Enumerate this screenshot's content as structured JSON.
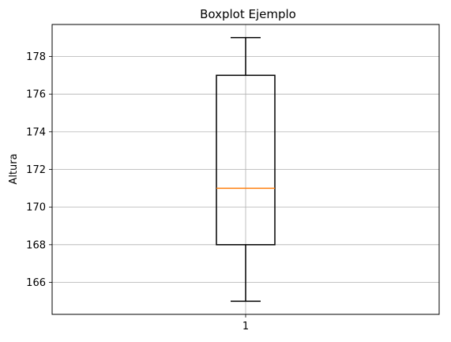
{
  "chart_data": {
    "type": "boxplot",
    "title": "Boxplot Ejemplo",
    "xlabel": "",
    "ylabel": "Altura",
    "categories": [
      "1"
    ],
    "boxes": [
      {
        "category": "1",
        "whisker_low": 165,
        "q1": 168,
        "median": 171,
        "q3": 177,
        "whisker_high": 179
      }
    ],
    "ylim": [
      164.3,
      179.7
    ],
    "yticks": [
      166,
      168,
      170,
      172,
      174,
      176,
      178
    ],
    "grid": true,
    "colors": {
      "box": "#000000",
      "median": "#ff7f0e",
      "grid": "#b0b0b0"
    }
  }
}
